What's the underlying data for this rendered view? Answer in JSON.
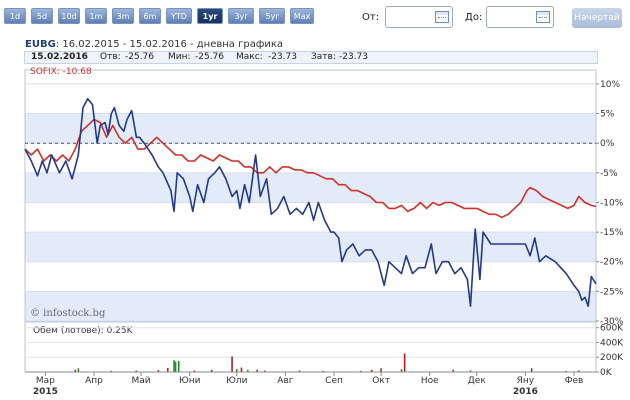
{
  "toolbar": {
    "ranges": [
      {
        "label": "1d",
        "active": false
      },
      {
        "label": "5d",
        "active": false
      },
      {
        "label": "10d",
        "active": false
      },
      {
        "label": "1m",
        "active": false
      },
      {
        "label": "3m",
        "active": false
      },
      {
        "label": "6m",
        "active": false
      },
      {
        "label": "YTD",
        "active": false
      },
      {
        "label": "1yr",
        "active": true
      },
      {
        "label": "3yr",
        "active": false
      },
      {
        "label": "5yr",
        "active": false
      },
      {
        "label": "Max",
        "active": false
      }
    ],
    "from_label": "От:",
    "from_value": "",
    "to_label": "До:",
    "to_value": "",
    "draw_button": "Начертай"
  },
  "header": {
    "ticker": "EUBG",
    "subtitle": ": 16.02.2015 - 15.02.2016 - дневна графика"
  },
  "stats": {
    "date": "15.02.2016",
    "open_label": "Отв:",
    "open": "-25.76",
    "low_label": "Мин:",
    "low": "-25.76",
    "high_label": "Макс:",
    "high": "-23.73",
    "close_label": "Затв:",
    "close": "-23.73"
  },
  "legend": {
    "sofix": "SOFIX: -10.68"
  },
  "watermark": "© infostock.bg",
  "volume_label": "Обем (лотове): 0.25K",
  "colors": {
    "eubg": "#233a8c",
    "sofix": "#d0302a",
    "band": "#e4ebf8",
    "vol_up": "#2a8a2a",
    "vol_down": "#b02020"
  },
  "chart_data": {
    "type": "line",
    "unit": "%",
    "ylim": [
      -30,
      11
    ],
    "yticks": [
      "10%",
      "5%",
      "0%",
      "-5%",
      "-10%",
      "-15%",
      "-20%",
      "-25%",
      "-30%"
    ],
    "x_axis": {
      "range": [
        "2015-02-16",
        "2016-02-15"
      ],
      "months": [
        {
          "label": "Мар",
          "date": "2015-03-01"
        },
        {
          "label": "Апр",
          "date": "2015-04-01"
        },
        {
          "label": "Май",
          "date": "2015-05-01"
        },
        {
          "label": "Юни",
          "date": "2015-06-01"
        },
        {
          "label": "Юли",
          "date": "2015-07-01"
        },
        {
          "label": "Авг",
          "date": "2015-08-01"
        },
        {
          "label": "Сеп",
          "date": "2015-09-01"
        },
        {
          "label": "Окт",
          "date": "2015-10-01"
        },
        {
          "label": "Ное",
          "date": "2015-11-01"
        },
        {
          "label": "Дек",
          "date": "2015-12-01"
        },
        {
          "label": "Яну",
          "date": "2016-01-01"
        },
        {
          "label": "Фев",
          "date": "2016-02-01"
        }
      ],
      "years": [
        {
          "label": "2015",
          "date": "2015-03-01"
        },
        {
          "label": "2016",
          "date": "2016-01-01"
        }
      ]
    },
    "series": [
      {
        "name": "EUBG",
        "color": "#233a8c",
        "points": [
          [
            "2015-02-16",
            -1
          ],
          [
            "2015-02-20",
            -3
          ],
          [
            "2015-02-24",
            -5.5
          ],
          [
            "2015-02-27",
            -3
          ],
          [
            "2015-03-02",
            -5
          ],
          [
            "2015-03-05",
            -2
          ],
          [
            "2015-03-10",
            -5
          ],
          [
            "2015-03-14",
            -3
          ],
          [
            "2015-03-18",
            -6
          ],
          [
            "2015-03-22",
            -2
          ],
          [
            "2015-03-25",
            6
          ],
          [
            "2015-03-28",
            7.5
          ],
          [
            "2015-03-31",
            6.5
          ],
          [
            "2015-04-03",
            0
          ],
          [
            "2015-04-05",
            3
          ],
          [
            "2015-04-08",
            3.5
          ],
          [
            "2015-04-10",
            1.5
          ],
          [
            "2015-04-12",
            5
          ],
          [
            "2015-04-14",
            6
          ],
          [
            "2015-04-17",
            3
          ],
          [
            "2015-04-20",
            2
          ],
          [
            "2015-04-22",
            4
          ],
          [
            "2015-04-25",
            5.5
          ],
          [
            "2015-04-28",
            1
          ],
          [
            "2015-04-30",
            1
          ],
          [
            "2015-05-03",
            0
          ],
          [
            "2015-05-08",
            -2
          ],
          [
            "2015-05-12",
            -4
          ],
          [
            "2015-05-15",
            -5
          ],
          [
            "2015-05-20",
            -8
          ],
          [
            "2015-05-22",
            -11.5
          ],
          [
            "2015-05-24",
            -5
          ],
          [
            "2015-05-28",
            -6
          ],
          [
            "2015-06-01",
            -9
          ],
          [
            "2015-06-03",
            -11.5
          ],
          [
            "2015-06-06",
            -7
          ],
          [
            "2015-06-10",
            -10
          ],
          [
            "2015-06-13",
            -6
          ],
          [
            "2015-06-17",
            -5
          ],
          [
            "2015-06-20",
            -4
          ],
          [
            "2015-06-24",
            -6
          ],
          [
            "2015-06-28",
            -9
          ],
          [
            "2015-07-01",
            -8
          ],
          [
            "2015-07-03",
            -11
          ],
          [
            "2015-07-06",
            -7
          ],
          [
            "2015-07-09",
            -10
          ],
          [
            "2015-07-13",
            -2
          ],
          [
            "2015-07-16",
            -9
          ],
          [
            "2015-07-20",
            -6
          ],
          [
            "2015-07-23",
            -12
          ],
          [
            "2015-07-27",
            -11
          ],
          [
            "2015-07-31",
            -9
          ],
          [
            "2015-08-04",
            -12
          ],
          [
            "2015-08-08",
            -11
          ],
          [
            "2015-08-12",
            -12
          ],
          [
            "2015-08-16",
            -10
          ],
          [
            "2015-08-19",
            -13
          ],
          [
            "2015-08-22",
            -10
          ],
          [
            "2015-08-26",
            -13
          ],
          [
            "2015-08-30",
            -15
          ],
          [
            "2015-09-01",
            -15
          ],
          [
            "2015-09-04",
            -16
          ],
          [
            "2015-09-06",
            -20
          ],
          [
            "2015-09-09",
            -18
          ],
          [
            "2015-09-13",
            -17
          ],
          [
            "2015-09-17",
            -19
          ],
          [
            "2015-09-21",
            -18
          ],
          [
            "2015-09-25",
            -18
          ],
          [
            "2015-09-29",
            -20
          ],
          [
            "2015-10-03",
            -24
          ],
          [
            "2015-10-06",
            -20
          ],
          [
            "2015-10-10",
            -21
          ],
          [
            "2015-10-14",
            -22
          ],
          [
            "2015-10-17",
            -19
          ],
          [
            "2015-10-21",
            -22
          ],
          [
            "2015-10-25",
            -21
          ],
          [
            "2015-10-29",
            -21
          ],
          [
            "2015-11-02",
            -17
          ],
          [
            "2015-11-05",
            -22
          ],
          [
            "2015-11-09",
            -20
          ],
          [
            "2015-11-13",
            -20
          ],
          [
            "2015-11-17",
            -22
          ],
          [
            "2015-11-21",
            -21
          ],
          [
            "2015-11-25",
            -23
          ],
          [
            "2015-11-27",
            -27.5
          ],
          [
            "2015-11-30",
            -14.5
          ],
          [
            "2015-12-03",
            -23
          ],
          [
            "2015-12-05",
            -15
          ],
          [
            "2015-12-10",
            -17
          ],
          [
            "2015-12-16",
            -17
          ],
          [
            "2015-12-22",
            -17
          ],
          [
            "2015-12-28",
            -17
          ],
          [
            "2016-01-01",
            -17
          ],
          [
            "2016-01-04",
            -19
          ],
          [
            "2016-01-07",
            -16
          ],
          [
            "2016-01-10",
            -20
          ],
          [
            "2016-01-14",
            -19
          ],
          [
            "2016-01-20",
            -20
          ],
          [
            "2016-01-27",
            -22
          ],
          [
            "2016-02-01",
            -24
          ],
          [
            "2016-02-04",
            -25
          ],
          [
            "2016-02-06",
            -26.5
          ],
          [
            "2016-02-08",
            -26
          ],
          [
            "2016-02-10",
            -27.5
          ],
          [
            "2016-02-12",
            -22.5
          ],
          [
            "2016-02-15",
            -23.73
          ]
        ]
      },
      {
        "name": "SOFIX",
        "color": "#d0302a",
        "points": [
          [
            "2015-02-16",
            -1
          ],
          [
            "2015-02-20",
            -2
          ],
          [
            "2015-02-24",
            -1
          ],
          [
            "2015-02-28",
            -3
          ],
          [
            "2015-03-04",
            -2
          ],
          [
            "2015-03-08",
            -3
          ],
          [
            "2015-03-12",
            -2
          ],
          [
            "2015-03-16",
            -3
          ],
          [
            "2015-03-20",
            -1
          ],
          [
            "2015-03-24",
            2
          ],
          [
            "2015-03-28",
            3
          ],
          [
            "2015-04-01",
            4
          ],
          [
            "2015-04-05",
            3.5
          ],
          [
            "2015-04-09",
            1
          ],
          [
            "2015-04-13",
            3
          ],
          [
            "2015-04-17",
            1
          ],
          [
            "2015-04-21",
            0
          ],
          [
            "2015-04-25",
            1
          ],
          [
            "2015-04-29",
            -1
          ],
          [
            "2015-05-03",
            -1
          ],
          [
            "2015-05-07",
            0
          ],
          [
            "2015-05-11",
            1
          ],
          [
            "2015-05-15",
            0
          ],
          [
            "2015-05-19",
            -1
          ],
          [
            "2015-05-23",
            -2
          ],
          [
            "2015-05-27",
            -2
          ],
          [
            "2015-05-31",
            -3
          ],
          [
            "2015-06-04",
            -3
          ],
          [
            "2015-06-08",
            -2
          ],
          [
            "2015-06-12",
            -2.5
          ],
          [
            "2015-06-16",
            -3
          ],
          [
            "2015-06-20",
            -2
          ],
          [
            "2015-06-24",
            -2.5
          ],
          [
            "2015-06-28",
            -3
          ],
          [
            "2015-07-02",
            -3
          ],
          [
            "2015-07-06",
            -4
          ],
          [
            "2015-07-10",
            -4
          ],
          [
            "2015-07-14",
            -5
          ],
          [
            "2015-07-18",
            -5
          ],
          [
            "2015-07-22",
            -4
          ],
          [
            "2015-07-26",
            -5
          ],
          [
            "2015-07-30",
            -4
          ],
          [
            "2015-08-03",
            -4
          ],
          [
            "2015-08-07",
            -4.5
          ],
          [
            "2015-08-11",
            -4.5
          ],
          [
            "2015-08-15",
            -5
          ],
          [
            "2015-08-19",
            -5
          ],
          [
            "2015-08-23",
            -5.5
          ],
          [
            "2015-08-27",
            -6
          ],
          [
            "2015-08-31",
            -6
          ],
          [
            "2015-09-04",
            -7
          ],
          [
            "2015-09-08",
            -7
          ],
          [
            "2015-09-12",
            -8
          ],
          [
            "2015-09-16",
            -8
          ],
          [
            "2015-09-20",
            -8.5
          ],
          [
            "2015-09-24",
            -9
          ],
          [
            "2015-09-28",
            -10
          ],
          [
            "2015-10-02",
            -10
          ],
          [
            "2015-10-06",
            -11
          ],
          [
            "2015-10-10",
            -11
          ],
          [
            "2015-10-14",
            -10.5
          ],
          [
            "2015-10-18",
            -11.5
          ],
          [
            "2015-10-22",
            -11
          ],
          [
            "2015-10-26",
            -10
          ],
          [
            "2015-10-30",
            -11
          ],
          [
            "2015-11-03",
            -10
          ],
          [
            "2015-11-07",
            -10.5
          ],
          [
            "2015-11-11",
            -10
          ],
          [
            "2015-11-15",
            -10
          ],
          [
            "2015-11-19",
            -10.5
          ],
          [
            "2015-11-23",
            -11
          ],
          [
            "2015-11-27",
            -11
          ],
          [
            "2015-12-01",
            -11
          ],
          [
            "2015-12-05",
            -11.5
          ],
          [
            "2015-12-09",
            -12
          ],
          [
            "2015-12-13",
            -12
          ],
          [
            "2015-12-17",
            -12.5
          ],
          [
            "2015-12-21",
            -12
          ],
          [
            "2015-12-25",
            -11
          ],
          [
            "2015-12-29",
            -10
          ],
          [
            "2016-01-02",
            -8
          ],
          [
            "2016-01-04",
            -7.5
          ],
          [
            "2016-01-08",
            -8
          ],
          [
            "2016-01-12",
            -9
          ],
          [
            "2016-01-16",
            -9.5
          ],
          [
            "2016-01-20",
            -10
          ],
          [
            "2016-01-24",
            -10.5
          ],
          [
            "2016-01-28",
            -11
          ],
          [
            "2016-02-01",
            -10.5
          ],
          [
            "2016-02-04",
            -9
          ],
          [
            "2016-02-08",
            -10
          ],
          [
            "2016-02-12",
            -10.5
          ],
          [
            "2016-02-15",
            -10.68
          ]
        ]
      }
    ],
    "volume": {
      "unit": "K lots",
      "ylim": [
        0,
        650
      ],
      "yticks": [
        "600K",
        "400K",
        "200K",
        "0K"
      ],
      "bars": [
        [
          "2015-03-20",
          30,
          "down"
        ],
        [
          "2015-03-22",
          50,
          "up"
        ],
        [
          "2015-04-12",
          15,
          "down"
        ],
        [
          "2015-04-28",
          20,
          "down"
        ],
        [
          "2015-05-12",
          25,
          "down"
        ],
        [
          "2015-05-18",
          55,
          "down"
        ],
        [
          "2015-05-22",
          160,
          "up"
        ],
        [
          "2015-05-23",
          140,
          "up"
        ],
        [
          "2015-05-25",
          150,
          "up"
        ],
        [
          "2015-06-04",
          20,
          "down"
        ],
        [
          "2015-06-15",
          30,
          "down"
        ],
        [
          "2015-06-28",
          210,
          "down"
        ],
        [
          "2015-07-01",
          40,
          "up"
        ],
        [
          "2015-07-04",
          60,
          "down"
        ],
        [
          "2015-07-08",
          30,
          "up"
        ],
        [
          "2015-07-14",
          30,
          "down"
        ],
        [
          "2015-07-19",
          20,
          "down"
        ],
        [
          "2015-08-10",
          20,
          "down"
        ],
        [
          "2015-08-25",
          15,
          "down"
        ],
        [
          "2015-09-18",
          15,
          "down"
        ],
        [
          "2015-09-25",
          30,
          "down"
        ],
        [
          "2015-10-01",
          50,
          "down"
        ],
        [
          "2015-10-14",
          40,
          "up"
        ],
        [
          "2015-10-16",
          250,
          "down"
        ],
        [
          "2015-11-16",
          30,
          "down"
        ],
        [
          "2015-11-27",
          20,
          "down"
        ],
        [
          "2016-01-05",
          50,
          "down"
        ],
        [
          "2016-01-27",
          15,
          "down"
        ],
        [
          "2016-02-04",
          20,
          "down"
        ]
      ]
    }
  }
}
